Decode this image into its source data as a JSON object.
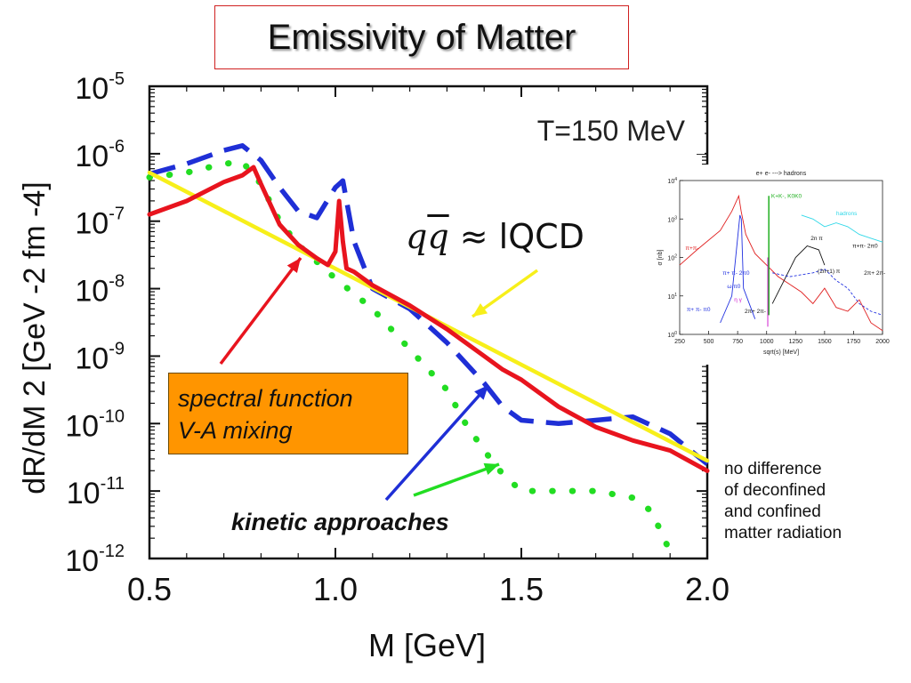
{
  "title": "Emissivity of Matter",
  "annotations": {
    "temperature": "T=150 MeV",
    "spectral": [
      "spectral function",
      "V-A mixing"
    ],
    "kinetic": "kinetic approaches",
    "note": [
      "no difference",
      "of deconfined",
      "and confined",
      "matter radiation"
    ],
    "qq_q": "q",
    "qq_qbar": "q",
    "qq_rest": " ≈ lQCD"
  },
  "colors": {
    "red": "#e8141e",
    "blue": "#1f2fd6",
    "green": "#22dd22",
    "yellow": "#f7ef1a"
  },
  "chart_data": [
    {
      "type": "line",
      "xlabel": "M [GeV]",
      "ylabel": "dR/dM 2 [GeV -2  fm -4]",
      "xlim": [
        0.5,
        2.0
      ],
      "ylim_log10": [
        -12,
        -5
      ],
      "yscale": "log",
      "x_ticks": [
        {
          "value": 0.5,
          "label": "0.5"
        },
        {
          "value": 1.0,
          "label": "1.0"
        },
        {
          "value": 1.5,
          "label": "1.5"
        },
        {
          "value": 2.0,
          "label": "2.0"
        }
      ],
      "y_ticks": [
        {
          "exp": -5,
          "base": "10",
          "sup": "-5"
        },
        {
          "exp": -6,
          "base": "10",
          "sup": "-6"
        },
        {
          "exp": -7,
          "base": "10",
          "sup": "-7"
        },
        {
          "exp": -8,
          "base": "10",
          "sup": "-8"
        },
        {
          "exp": -9,
          "base": "10",
          "sup": "-9"
        },
        {
          "exp": -10,
          "base": "10",
          "sup": "-10"
        },
        {
          "exp": -11,
          "base": "10",
          "sup": "-11"
        },
        {
          "exp": -12,
          "base": "10",
          "sup": "-12"
        }
      ],
      "series": [
        {
          "key": "green",
          "style": "dotted",
          "x": [
            0.5,
            0.6,
            0.7,
            0.75,
            0.8,
            0.85,
            0.9,
            1.0,
            1.1,
            1.2,
            1.3,
            1.35,
            1.4,
            1.45,
            1.5,
            1.6,
            1.7,
            1.8,
            1.85,
            1.9
          ],
          "log10y": [
            -6.35,
            -6.28,
            -6.15,
            -6.12,
            -6.45,
            -7.0,
            -7.35,
            -7.85,
            -8.3,
            -8.9,
            -9.5,
            -10.0,
            -10.4,
            -10.75,
            -11.0,
            -11.0,
            -11.0,
            -11.1,
            -11.3,
            -11.9
          ]
        },
        {
          "key": "blue",
          "style": "dashed",
          "x": [
            0.5,
            0.6,
            0.7,
            0.75,
            0.8,
            0.85,
            0.9,
            0.95,
            1.0,
            1.02,
            1.05,
            1.1,
            1.2,
            1.3,
            1.4,
            1.45,
            1.5,
            1.6,
            1.7,
            1.8,
            1.9,
            2.0
          ],
          "log10y": [
            -6.3,
            -6.15,
            -5.95,
            -5.88,
            -6.1,
            -6.5,
            -6.85,
            -6.95,
            -6.5,
            -6.4,
            -7.3,
            -8.0,
            -8.3,
            -8.8,
            -9.4,
            -9.75,
            -9.95,
            -10.0,
            -9.95,
            -9.9,
            -10.15,
            -10.6
          ]
        },
        {
          "key": "yellow",
          "style": "solid",
          "x": [
            0.5,
            2.0
          ],
          "log10y": [
            -6.28,
            -10.55
          ]
        },
        {
          "key": "red",
          "style": "solid",
          "x": [
            0.5,
            0.6,
            0.7,
            0.75,
            0.78,
            0.8,
            0.85,
            0.9,
            0.95,
            0.98,
            1.0,
            1.01,
            1.02,
            1.03,
            1.05,
            1.1,
            1.2,
            1.3,
            1.4,
            1.45,
            1.5,
            1.6,
            1.7,
            1.8,
            1.9,
            2.0
          ],
          "log10y": [
            -6.9,
            -6.7,
            -6.42,
            -6.32,
            -6.2,
            -6.45,
            -7.05,
            -7.35,
            -7.55,
            -7.65,
            -7.45,
            -6.7,
            -7.3,
            -7.7,
            -7.75,
            -7.95,
            -8.25,
            -8.6,
            -9.0,
            -9.2,
            -9.35,
            -9.75,
            -10.05,
            -10.25,
            -10.4,
            -10.7
          ]
        }
      ]
    },
    {
      "type": "line",
      "title": "e+ e- ---> hadrons",
      "xlabel": "sqrt(s) [MeV]",
      "ylabel": "σ [nb]",
      "xlim": [
        250,
        2000
      ],
      "ylim_log10": [
        0,
        4
      ],
      "yscale": "log",
      "x_ticks": [
        "250",
        "500",
        "750",
        "1000",
        "1250",
        "1500",
        "1750",
        "2000"
      ],
      "y_ticks": [
        {
          "exp": 4,
          "base": "10",
          "sup": "4"
        },
        {
          "exp": 3,
          "base": "10",
          "sup": "3"
        },
        {
          "exp": 2,
          "base": "10",
          "sup": "2"
        },
        {
          "exp": 1,
          "base": "10",
          "sup": "1"
        },
        {
          "exp": 0,
          "base": "10",
          "sup": "0"
        }
      ],
      "labels": {
        "kk": "K+K-, K0K0",
        "hadrons": "hadrons",
        "pipi": "π+π-",
        "twopi": "2n π",
        "pi2pi": "π+π- 2π0",
        "pipipi0": "π+ π- 2π0",
        "omegapi": "ω π0",
        "eta": "η γ",
        "pipipi": "π+ π- π0",
        "twopitwopi": "2π+ 2π-",
        "n1pi": "(2n+1) π",
        "twopi2": "2π+ 2π-"
      },
      "series": [
        {
          "key": "red",
          "x": [
            250,
            400,
            600,
            700,
            760,
            780,
            820,
            900,
            1000,
            1100,
            1200,
            1300,
            1400,
            1500,
            1600,
            1700,
            1800,
            1900,
            2000
          ],
          "log10y": [
            1.8,
            2.2,
            2.7,
            3.2,
            3.6,
            3.2,
            2.6,
            2.1,
            1.8,
            1.5,
            1.3,
            1.1,
            0.8,
            1.2,
            0.7,
            0.6,
            0.9,
            0.3,
            0.1
          ]
        },
        {
          "key": "blue",
          "x": [
            600,
            700,
            770,
            782,
            800,
            900
          ],
          "log10y": [
            0.3,
            1.0,
            3.1,
            3.0,
            1.2,
            0.4
          ]
        },
        {
          "key": "cyan",
          "x": [
            1300,
            1400,
            1500,
            1600,
            1700,
            1800,
            1900,
            2000
          ],
          "log10y": [
            3.1,
            3.0,
            2.8,
            2.9,
            2.8,
            2.6,
            2.5,
            2.4
          ]
        },
        {
          "key": "black",
          "x": [
            1050,
            1150,
            1250,
            1350,
            1450,
            1500
          ],
          "log10y": [
            0.8,
            1.4,
            2.0,
            2.3,
            2.2,
            1.8
          ]
        },
        {
          "key": "blue-dash",
          "x": [
            1050,
            1200,
            1400,
            1500,
            1600,
            1700,
            1800,
            1900,
            2000
          ],
          "log10y": [
            1.6,
            1.5,
            1.6,
            1.7,
            1.4,
            1.2,
            0.8,
            0.6,
            0.5
          ]
        }
      ]
    }
  ]
}
